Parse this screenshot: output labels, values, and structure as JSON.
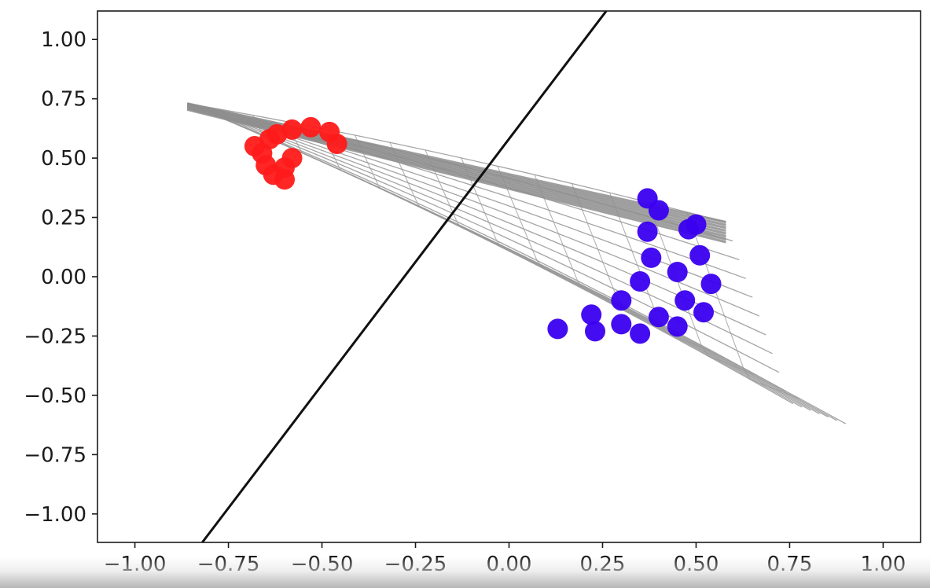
{
  "chart_data": {
    "type": "scatter",
    "title": "",
    "xlabel": "",
    "ylabel": "",
    "xlim": [
      -1.1,
      1.1
    ],
    "ylim": [
      -1.12,
      1.12
    ],
    "grid": false,
    "xticks": [
      -1.0,
      -0.75,
      -0.5,
      -0.25,
      0.0,
      0.25,
      0.5,
      0.75,
      1.0
    ],
    "yticks": [
      -1.0,
      -0.75,
      -0.5,
      -0.25,
      0.0,
      0.25,
      0.5,
      0.75,
      1.0
    ],
    "xtick_labels": [
      "−1.00",
      "−0.75",
      "−0.50",
      "−0.25",
      "0.00",
      "0.25",
      "0.50",
      "0.75",
      "1.00"
    ],
    "ytick_labels": [
      "1.00",
      "0.75",
      "0.50",
      "0.25",
      "0.00",
      "−0.25",
      "−0.50",
      "−0.75",
      "−1.00"
    ],
    "colors": {
      "line": "#111111",
      "mesh": "#9a9a9a",
      "class_a": "#ff1a1a",
      "class_b": "#3a00f0"
    },
    "line": {
      "x": [
        -0.82,
        0.26
      ],
      "y": [
        -1.12,
        1.12
      ]
    },
    "mesh_surface": {
      "tip": [
        -0.86,
        0.73
      ],
      "ridge_end": [
        0.58,
        0.23
      ],
      "bottom_end": [
        0.9,
        -0.62
      ],
      "inner_end": [
        0.75,
        -0.53
      ]
    },
    "series": [
      {
        "points": [
          [
            -0.68,
            0.55
          ],
          [
            -0.66,
            0.52
          ],
          [
            -0.65,
            0.47
          ],
          [
            -0.63,
            0.43
          ],
          [
            -0.6,
            0.41
          ],
          [
            -0.64,
            0.58
          ],
          [
            -0.62,
            0.6
          ],
          [
            -0.58,
            0.62
          ],
          [
            -0.53,
            0.63
          ],
          [
            -0.48,
            0.61
          ],
          [
            -0.46,
            0.56
          ],
          [
            -0.58,
            0.5
          ],
          [
            -0.6,
            0.46
          ]
        ]
      },
      {
        "points": [
          [
            0.37,
            0.33
          ],
          [
            0.4,
            0.28
          ],
          [
            0.37,
            0.19
          ],
          [
            0.38,
            0.08
          ],
          [
            0.35,
            -0.02
          ],
          [
            0.3,
            -0.1
          ],
          [
            0.22,
            -0.16
          ],
          [
            0.13,
            -0.22
          ],
          [
            0.23,
            -0.23
          ],
          [
            0.35,
            -0.24
          ],
          [
            0.45,
            -0.21
          ],
          [
            0.52,
            -0.15
          ],
          [
            0.54,
            -0.03
          ],
          [
            0.51,
            0.09
          ],
          [
            0.48,
            0.2
          ],
          [
            0.5,
            0.22
          ],
          [
            0.45,
            0.02
          ],
          [
            0.47,
            -0.1
          ],
          [
            0.4,
            -0.17
          ],
          [
            0.3,
            -0.2
          ]
        ]
      }
    ]
  }
}
